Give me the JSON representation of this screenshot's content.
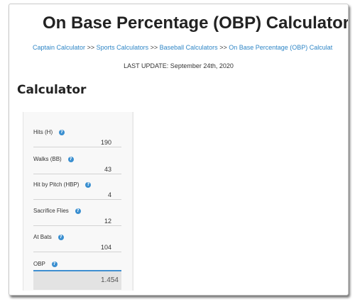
{
  "header": {
    "title": "On Base Percentage (OBP) Calculator",
    "breadcrumb": {
      "items": [
        "Captain Calculator",
        "Sports Calculators",
        "Baseball Calculators",
        "On Base Percentage (OBP) Calculat"
      ],
      "separator": ">>"
    },
    "last_update": "LAST UPDATE: September 24th, 2020"
  },
  "calculator": {
    "heading": "Calculator",
    "help_icon_glyph": "?",
    "fields": [
      {
        "label": "Hits (H)",
        "value": "190"
      },
      {
        "label": "Walks (BB)",
        "value": "43"
      },
      {
        "label": "Hit by Pitch (HBP)",
        "value": "4"
      },
      {
        "label": "Sacrifice Flies",
        "value": "12"
      },
      {
        "label": "At Bats",
        "value": "104"
      }
    ],
    "result": {
      "label": "OBP",
      "value": "1.454"
    }
  },
  "colors": {
    "link": "#2f86c6",
    "accent": "#3f8fd1",
    "result_bg": "#e3e3e3"
  },
  "icons": {
    "help": "question-circle-icon"
  }
}
